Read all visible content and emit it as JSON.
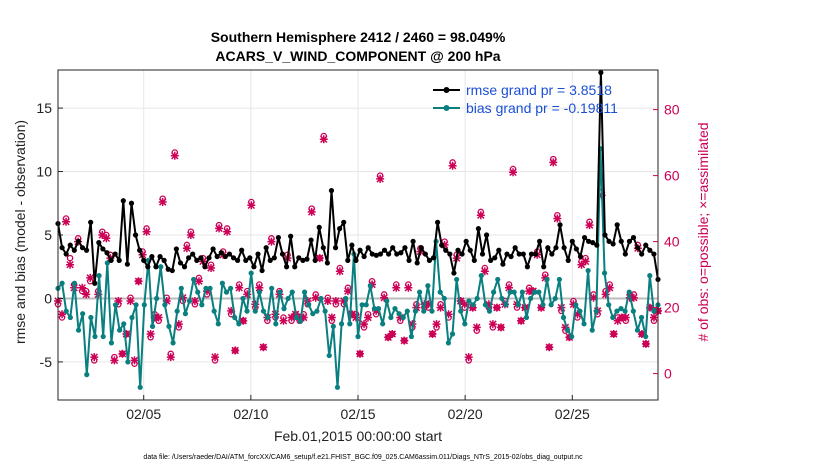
{
  "chart_data": {
    "type": "line",
    "title_line1": "Southern Hemisphere 2412 / 2460 = 98.049%",
    "title_line2": "ACARS_V_WIND_COMPONENT @ 200 hPa",
    "ylabel": "rmse and bias (model - observation)",
    "ylabel_right": "# of obs: o=possible; ×=assimilated",
    "xlabel": "Feb.01,2015 00:00:00 start",
    "footnote": "data file: /Users/raeder/DAI/ATM_forcXX/CAM6_setup/f.e21.FHIST_BGC.f09_025.CAM6assim.011/Diags_NTrS_2015-02/obs_diag_output.nc",
    "xlim": [
      1.0,
      29.0
    ],
    "ylim": [
      -8.0,
      18.0
    ],
    "ylim_right": [
      -8.0,
      92.0
    ],
    "x_ticks": [
      5,
      10,
      15,
      20,
      25
    ],
    "x_tick_labels": [
      "02/05",
      "02/10",
      "02/15",
      "02/20",
      "02/25"
    ],
    "y_ticks": [
      -5,
      0,
      5,
      10,
      15
    ],
    "y_tick_labels": [
      "-5",
      "0",
      "5",
      "10",
      "15"
    ],
    "y_right_ticks": [
      0,
      20,
      40,
      60,
      80
    ],
    "y_right_tick_labels": [
      "0",
      "20",
      "40",
      "60",
      "80"
    ],
    "colors": {
      "rmse": "#000000",
      "bias": "#0a7f7f",
      "obs": "#cc0055",
      "zero_line": "#bbbbbb",
      "legend_text": "#1a4fd6"
    },
    "series": [
      {
        "name": "rmse grand pr = 3.8518",
        "values": [
          5.9,
          4.0,
          3.5,
          4.2,
          3.8,
          4.5,
          4.0,
          3.8,
          6.0,
          1.2,
          4.4,
          3.9,
          3.6,
          3.0,
          3.5,
          3.0,
          7.7,
          2.7,
          7.5,
          5.0,
          3.8,
          3.0,
          2.5,
          3.3,
          2.5,
          3.3,
          3.0,
          2.3,
          2.2,
          3.9,
          2.8,
          2.5,
          3.2,
          3.5,
          3.0,
          3.2,
          2.5,
          3.2,
          3.9,
          3.3,
          3.6,
          3.3,
          3.5,
          3.2,
          3.0,
          3.8,
          3.0,
          3.2,
          2.5,
          3.5,
          2.2,
          4.0,
          3.0,
          3.2,
          4.8,
          3.5,
          2.5,
          4.9,
          2.5,
          3.2,
          3.0,
          3.1,
          4.6,
          3.0,
          5.6,
          4.0,
          2.8,
          8.5,
          4.0,
          5.5,
          6.0,
          3.0,
          4.2,
          3.0,
          3.8,
          3.3,
          4.0,
          3.5,
          3.4,
          3.5,
          3.8,
          3.5,
          4.0,
          3.5,
          3.6,
          4.0,
          3.0,
          4.5,
          2.8,
          4.0,
          3.5,
          3.0,
          3.2,
          6.0,
          4.2,
          3.8,
          3.5,
          2.0,
          3.8,
          3.5,
          4.5,
          3.8,
          3.0,
          5.5,
          3.5,
          5.0,
          3.0,
          3.2,
          3.8,
          2.7,
          3.5,
          3.3,
          4.0,
          3.5,
          3.5,
          2.5,
          3.5,
          3.5,
          4.5,
          2.5,
          4.0,
          3.5,
          4.0,
          5.8,
          4.0,
          3.0,
          4.5,
          3.9,
          3.3,
          4.8,
          4.5,
          4.4,
          4.2,
          17.8,
          5.0,
          4.5,
          4.3,
          5.8,
          4.5,
          3.5,
          4.5,
          4.8,
          4.0,
          3.5,
          4.2,
          3.8,
          3.5,
          1.5
        ]
      },
      {
        "name": "bias grand pr = -0.19811",
        "values": [
          0.8,
          1.2,
          -1.0,
          -1.5,
          1.2,
          -2.5,
          -1.2,
          -6.0,
          -1.5,
          -3.0,
          1.8,
          -3.0,
          2.8,
          -3.5,
          -0.5,
          -2.5,
          -2.0,
          -5.0,
          -1.5,
          -0.5,
          -7.0,
          -0.5,
          3.0,
          -2.2,
          0.0,
          2.5,
          -0.5,
          -2.2,
          -3.5,
          -1.0,
          0.8,
          -1.2,
          -0.2,
          1.5,
          0.5,
          -0.5,
          0.8,
          0.8,
          -1.0,
          -2.0,
          1.2,
          0.5,
          0.8,
          -1.5,
          -2.0,
          0.0,
          -1.0,
          2.0,
          -1.0,
          0.5,
          -1.0,
          -1.5,
          0.8,
          -2.0,
          0.5,
          -0.8,
          0.0,
          0.5,
          -1.5,
          -1.8,
          0.5,
          -0.5,
          -1.2,
          -1.0,
          0.0,
          -1.0,
          -4.5,
          -2.2,
          -7.0,
          -2.0,
          0.0,
          -2.0,
          3.5,
          -3.0,
          -0.5,
          -0.5,
          1.0,
          -0.8,
          -0.8,
          -2.0,
          -0.2,
          -1.5,
          -0.8,
          -1.2,
          -1.5,
          -1.0,
          -3.0,
          -1.0,
          0.5,
          -1.0,
          1.0,
          -1.0,
          4.5,
          0.5,
          0.0,
          -3.5,
          -2.8,
          1.5,
          -1.0,
          -2.0,
          -0.2,
          -0.5,
          0.0,
          1.8,
          -0.5,
          -1.0,
          0.5,
          1.5,
          0.0,
          -0.5,
          0.5,
          0.5,
          -0.5,
          0.5,
          -1.5,
          0.0,
          0.5,
          0.5,
          -0.5,
          1.5,
          -0.5,
          0.0,
          1.5,
          -1.5,
          -2.5,
          -3.0,
          -0.5,
          -1.0,
          -2.0,
          2.2,
          -2.5,
          -1.0,
          11.8,
          2.0,
          -0.5,
          -1.5,
          -1.0,
          -0.8,
          -1.0,
          0.5,
          -1.0,
          -2.5,
          -1.5,
          -3.0,
          1.8,
          -1.0,
          -0.5
        ]
      }
    ],
    "obs_possible": [
      21,
      17,
      47,
      35,
      27,
      41,
      25,
      25,
      28,
      4,
      25,
      43,
      42,
      36,
      5,
      21,
      6,
      12,
      23,
      3,
      28,
      37,
      44,
      11,
      18,
      16,
      53,
      23,
      6,
      67,
      14,
      22,
      39,
      43,
      21,
      29,
      35,
      24,
      33,
      4,
      45,
      37,
      44,
      18,
      7,
      27,
      16,
      25,
      52,
      20,
      27,
      8,
      16,
      41,
      17,
      25,
      17,
      36,
      16,
      18,
      16,
      18,
      21,
      50,
      24,
      35,
      72,
      23,
      16,
      21,
      32,
      21,
      26,
      18,
      18,
      6,
      14,
      18,
      28,
      18,
      60,
      24,
      11,
      12,
      27,
      16,
      10,
      27,
      14,
      21,
      38,
      20,
      20,
      12,
      14,
      21,
      40,
      17,
      64,
      36,
      22,
      20,
      4,
      20,
      13,
      49,
      32,
      20,
      14,
      20,
      14,
      22,
      27,
      62,
      20,
      16,
      20,
      26,
      25,
      37,
      20,
      30,
      8,
      65,
      48,
      19,
      13,
      11,
      22,
      17,
      34,
      35,
      46,
      24,
      18,
      55,
      25,
      27,
      12,
      17,
      17,
      16,
      24,
      24,
      39,
      12,
      9,
      20,
      16,
      19
    ],
    "obs_assimilated": [
      22,
      18,
      46,
      33,
      26,
      40,
      26,
      24,
      29,
      5,
      24,
      42,
      41,
      35,
      4,
      22,
      6,
      12,
      22,
      4,
      28,
      36,
      43,
      12,
      17,
      17,
      52,
      22,
      5,
      66,
      15,
      23,
      38,
      42,
      22,
      28,
      34,
      25,
      32,
      5,
      44,
      36,
      43,
      19,
      7,
      26,
      16,
      24,
      51,
      21,
      26,
      8,
      17,
      40,
      18,
      24,
      16,
      35,
      17,
      18,
      17,
      17,
      22,
      49,
      23,
      35,
      71,
      22,
      17,
      22,
      31,
      22,
      25,
      18,
      17,
      6,
      15,
      17,
      27,
      19,
      59,
      23,
      11,
      12,
      26,
      17,
      10,
      26,
      15,
      20,
      37,
      21,
      21,
      12,
      15,
      20,
      39,
      18,
      63,
      35,
      22,
      21,
      5,
      20,
      14,
      48,
      31,
      21,
      15,
      20,
      14,
      21,
      26,
      61,
      21,
      16,
      20,
      25,
      25,
      36,
      20,
      29,
      8,
      64,
      47,
      20,
      14,
      11,
      21,
      18,
      33,
      34,
      45,
      23,
      19,
      54,
      24,
      26,
      12,
      16,
      17,
      17,
      23,
      23,
      38,
      12,
      9,
      20,
      17,
      19
    ]
  }
}
